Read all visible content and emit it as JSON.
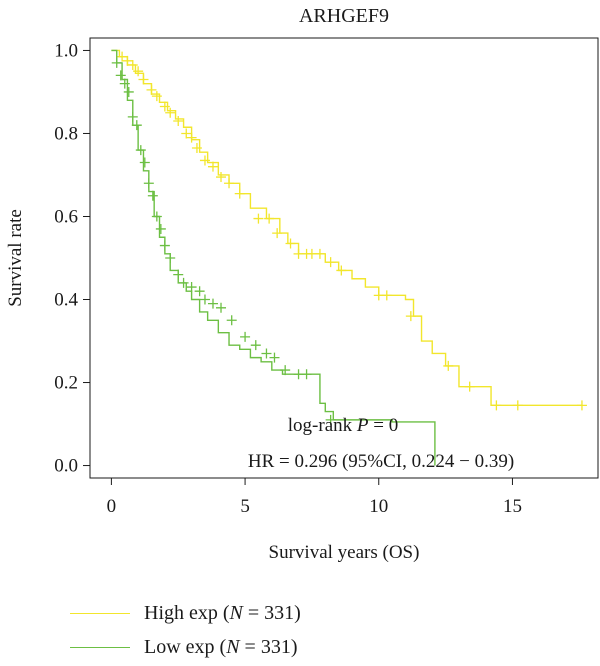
{
  "chart_data": {
    "type": "line",
    "title": "ARHGEF9",
    "xlabel": "Survival years (OS)",
    "ylabel": "Survival rate",
    "xlim": [
      -0.8,
      18.2
    ],
    "ylim": [
      -0.03,
      1.03
    ],
    "x_ticks": [
      0,
      5,
      10,
      15
    ],
    "x_tick_labels": [
      "0",
      "5",
      "10",
      "15"
    ],
    "y_ticks": [
      0.0,
      0.2,
      0.4,
      0.6,
      0.8,
      1.0
    ],
    "y_tick_labels": [
      "0.0",
      "0.2",
      "0.4",
      "0.6",
      "0.8",
      "1.0"
    ],
    "annotations": {
      "logrank_prefix": "log-rank ",
      "logrank_p": "P",
      "logrank_suffix": " = 0",
      "hr": "HR = 0.296 (95%CI, 0.224 − 0.39)"
    },
    "series": [
      {
        "name": "High exp (N = 331)",
        "legend_prefix": "High exp (",
        "legend_n": "N",
        "legend_suffix": " = 331)",
        "color": "#f2e62c",
        "x": [
          0,
          0.3,
          0.6,
          0.9,
          1.2,
          1.5,
          1.8,
          2.1,
          2.4,
          2.7,
          3.0,
          3.3,
          3.6,
          4.0,
          4.4,
          4.8,
          5.2,
          5.8,
          6.3,
          6.6,
          7.0,
          7.5,
          8.0,
          8.5,
          9.0,
          9.5,
          10.0,
          10.5,
          11.0,
          11.3,
          11.6,
          12.0,
          12.5,
          13.0,
          13.5,
          14.2,
          15.0,
          16.0,
          17.6
        ],
        "y": [
          1.0,
          0.985,
          0.965,
          0.945,
          0.92,
          0.895,
          0.875,
          0.855,
          0.835,
          0.815,
          0.785,
          0.755,
          0.73,
          0.7,
          0.68,
          0.655,
          0.62,
          0.595,
          0.56,
          0.535,
          0.51,
          0.51,
          0.49,
          0.47,
          0.45,
          0.43,
          0.41,
          0.41,
          0.4,
          0.36,
          0.3,
          0.27,
          0.24,
          0.19,
          0.19,
          0.145,
          0.145,
          0.145,
          0.145
        ],
        "censor_x": [
          0.4,
          0.6,
          0.8,
          1.0,
          1.2,
          1.5,
          1.7,
          2.0,
          2.2,
          2.5,
          2.8,
          3.0,
          3.2,
          3.5,
          3.8,
          4.1,
          4.4,
          4.8,
          5.5,
          5.9,
          6.2,
          6.7,
          7.0,
          7.3,
          7.5,
          7.8,
          8.2,
          8.6,
          10.0,
          10.3,
          11.2,
          12.6,
          13.4,
          14.4,
          15.2,
          17.6
        ],
        "censor_y": [
          0.985,
          0.975,
          0.965,
          0.95,
          0.93,
          0.905,
          0.89,
          0.865,
          0.85,
          0.83,
          0.8,
          0.79,
          0.765,
          0.735,
          0.72,
          0.695,
          0.68,
          0.655,
          0.595,
          0.595,
          0.56,
          0.535,
          0.51,
          0.51,
          0.51,
          0.51,
          0.49,
          0.47,
          0.41,
          0.41,
          0.36,
          0.24,
          0.19,
          0.145,
          0.145,
          0.145
        ]
      },
      {
        "name": "Low exp (N = 331)",
        "legend_prefix": "Low exp (",
        "legend_n": "N",
        "legend_suffix": " = 331)",
        "color": "#6cbf43",
        "x": [
          0,
          0.2,
          0.4,
          0.6,
          0.8,
          1.0,
          1.2,
          1.4,
          1.6,
          1.8,
          2.0,
          2.2,
          2.5,
          2.8,
          3.0,
          3.3,
          3.6,
          4.0,
          4.4,
          4.8,
          5.2,
          5.6,
          6.0,
          6.4,
          7.0,
          7.6,
          7.8,
          8.0,
          8.3,
          8.8,
          9.5,
          10.5,
          11.5,
          12.1
        ],
        "y": [
          1.0,
          0.97,
          0.93,
          0.88,
          0.82,
          0.76,
          0.71,
          0.66,
          0.6,
          0.55,
          0.51,
          0.47,
          0.44,
          0.42,
          0.4,
          0.37,
          0.35,
          0.32,
          0.29,
          0.28,
          0.26,
          0.25,
          0.23,
          0.22,
          0.22,
          0.22,
          0.15,
          0.13,
          0.11,
          0.11,
          0.11,
          0.105,
          0.105,
          0.0
        ],
        "censor_x": [
          0.2,
          0.35,
          0.5,
          0.65,
          0.8,
          0.95,
          1.1,
          1.25,
          1.4,
          1.55,
          1.7,
          1.85,
          2.0,
          2.2,
          2.5,
          2.7,
          3.0,
          3.3,
          3.5,
          3.8,
          4.1,
          4.5,
          5.0,
          5.4,
          5.8,
          6.1,
          6.5,
          7.0,
          7.3,
          8.2
        ],
        "censor_y": [
          0.97,
          0.94,
          0.92,
          0.9,
          0.84,
          0.82,
          0.76,
          0.73,
          0.68,
          0.65,
          0.6,
          0.57,
          0.53,
          0.5,
          0.46,
          0.44,
          0.43,
          0.42,
          0.4,
          0.39,
          0.38,
          0.35,
          0.31,
          0.29,
          0.27,
          0.26,
          0.23,
          0.22,
          0.22,
          0.11
        ]
      }
    ]
  }
}
